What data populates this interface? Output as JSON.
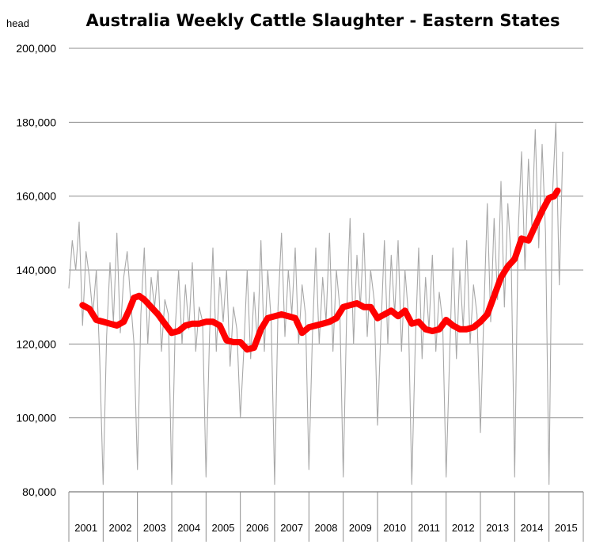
{
  "chart_data": {
    "type": "line",
    "title": "Australia Weekly Cattle Slaughter - Eastern States",
    "ylabel": "head",
    "ylim": [
      80000,
      200000
    ],
    "yticks": [
      80000,
      100000,
      120000,
      140000,
      160000,
      180000,
      200000
    ],
    "ytick_labels": [
      "80,000",
      "100,000",
      "120,000",
      "140,000",
      "160,000",
      "180,000",
      "200,000"
    ],
    "categories": [
      "2001",
      "2002",
      "2003",
      "2004",
      "2005",
      "2006",
      "2007",
      "2008",
      "2009",
      "2010",
      "2011",
      "2012",
      "2013",
      "2014",
      "2015"
    ],
    "grid": true,
    "legend": "none",
    "series": [
      {
        "role": "weekly",
        "color": "#a8a8a8",
        "x": [
          2001.0,
          2001.1,
          2001.2,
          2001.3,
          2001.4,
          2001.5,
          2001.6,
          2001.7,
          2001.8,
          2001.9,
          2002.0,
          2002.1,
          2002.2,
          2002.3,
          2002.4,
          2002.5,
          2002.6,
          2002.7,
          2002.8,
          2002.9,
          2003.0,
          2003.1,
          2003.2,
          2003.3,
          2003.4,
          2003.5,
          2003.6,
          2003.7,
          2003.8,
          2003.9,
          2004.0,
          2004.1,
          2004.2,
          2004.3,
          2004.4,
          2004.5,
          2004.6,
          2004.7,
          2004.8,
          2004.9,
          2005.0,
          2005.1,
          2005.2,
          2005.3,
          2005.4,
          2005.5,
          2005.6,
          2005.7,
          2005.8,
          2005.9,
          2006.0,
          2006.1,
          2006.2,
          2006.3,
          2006.4,
          2006.5,
          2006.6,
          2006.7,
          2006.8,
          2006.9,
          2007.0,
          2007.1,
          2007.2,
          2007.3,
          2007.4,
          2007.5,
          2007.6,
          2007.7,
          2007.8,
          2007.9,
          2008.0,
          2008.1,
          2008.2,
          2008.3,
          2008.4,
          2008.5,
          2008.6,
          2008.7,
          2008.8,
          2008.9,
          2009.0,
          2009.1,
          2009.2,
          2009.3,
          2009.4,
          2009.5,
          2009.6,
          2009.7,
          2009.8,
          2009.9,
          2010.0,
          2010.1,
          2010.2,
          2010.3,
          2010.4,
          2010.5,
          2010.6,
          2010.7,
          2010.8,
          2010.9,
          2011.0,
          2011.1,
          2011.2,
          2011.3,
          2011.4,
          2011.5,
          2011.6,
          2011.7,
          2011.8,
          2011.9,
          2012.0,
          2012.1,
          2012.2,
          2012.3,
          2012.4,
          2012.5,
          2012.6,
          2012.7,
          2012.8,
          2012.9,
          2013.0,
          2013.1,
          2013.2,
          2013.3,
          2013.4,
          2013.5,
          2013.6,
          2013.7,
          2013.8,
          2013.9,
          2014.0,
          2014.1,
          2014.2,
          2014.3,
          2014.4,
          2014.5,
          2014.6,
          2014.7,
          2014.8,
          2014.9,
          2015.0,
          2015.1,
          2015.2,
          2015.3,
          2015.4
        ],
        "values": [
          135000,
          148000,
          140000,
          153000,
          125000,
          145000,
          138000,
          128000,
          140000,
          116000,
          82000,
          122000,
          142000,
          126000,
          150000,
          123000,
          138000,
          145000,
          132000,
          120000,
          86000,
          128000,
          146000,
          120000,
          138000,
          130000,
          140000,
          118000,
          132000,
          128000,
          82000,
          124000,
          140000,
          120000,
          136000,
          124000,
          142000,
          118000,
          130000,
          126000,
          84000,
          122000,
          146000,
          118000,
          138000,
          126000,
          140000,
          114000,
          130000,
          124000,
          100000,
          118000,
          140000,
          116000,
          134000,
          120000,
          148000,
          118000,
          140000,
          126000,
          82000,
          130000,
          150000,
          122000,
          140000,
          128000,
          146000,
          120000,
          136000,
          128000,
          86000,
          122000,
          146000,
          120000,
          138000,
          126000,
          150000,
          118000,
          140000,
          130000,
          84000,
          128000,
          154000,
          120000,
          144000,
          130000,
          150000,
          122000,
          140000,
          132000,
          98000,
          124000,
          148000,
          120000,
          144000,
          128000,
          148000,
          118000,
          140000,
          128000,
          82000,
          120000,
          146000,
          116000,
          138000,
          124000,
          144000,
          118000,
          134000,
          126000,
          84000,
          116000,
          146000,
          116000,
          140000,
          124000,
          148000,
          120000,
          136000,
          128000,
          96000,
          128000,
          158000,
          126000,
          154000,
          132000,
          164000,
          130000,
          158000,
          142000,
          84000,
          150000,
          172000,
          140000,
          170000,
          152000,
          178000,
          146000,
          174000,
          150000,
          82000,
          160000,
          180000,
          136000,
          172000
        ]
      },
      {
        "role": "trend",
        "color": "#ff0000",
        "x": [
          2001.4,
          2001.6,
          2001.8,
          2002.0,
          2002.2,
          2002.4,
          2002.6,
          2002.75,
          2002.9,
          2003.05,
          2003.2,
          2003.4,
          2003.6,
          2003.8,
          2004.0,
          2004.2,
          2004.4,
          2004.6,
          2004.8,
          2005.0,
          2005.2,
          2005.4,
          2005.6,
          2005.8,
          2006.0,
          2006.2,
          2006.4,
          2006.6,
          2006.8,
          2007.0,
          2007.2,
          2007.4,
          2007.6,
          2007.8,
          2008.0,
          2008.2,
          2008.4,
          2008.6,
          2008.8,
          2009.0,
          2009.2,
          2009.4,
          2009.6,
          2009.8,
          2010.0,
          2010.2,
          2010.4,
          2010.6,
          2010.8,
          2011.0,
          2011.2,
          2011.4,
          2011.6,
          2011.8,
          2012.0,
          2012.2,
          2012.4,
          2012.6,
          2012.8,
          2013.0,
          2013.2,
          2013.4,
          2013.6,
          2013.8,
          2014.0,
          2014.2,
          2014.4,
          2014.6,
          2014.8,
          2015.0,
          2015.15,
          2015.25
        ],
        "values": [
          130500,
          129500,
          126500,
          126000,
          125500,
          125000,
          126000,
          129000,
          132500,
          133000,
          132000,
          130000,
          128000,
          125500,
          123000,
          123500,
          125000,
          125500,
          125500,
          126000,
          126000,
          125000,
          121000,
          120500,
          120500,
          118500,
          119000,
          124000,
          127000,
          127500,
          128000,
          127500,
          127000,
          123000,
          124500,
          125000,
          125500,
          126000,
          127000,
          130000,
          130500,
          131000,
          130000,
          130000,
          127000,
          128000,
          129000,
          127500,
          129000,
          125500,
          126000,
          124000,
          123500,
          124000,
          126500,
          125000,
          124000,
          124000,
          124500,
          126000,
          128000,
          133000,
          138000,
          141000,
          143000,
          148500,
          148000,
          152000,
          156000,
          159500,
          160000,
          161500
        ]
      }
    ]
  }
}
